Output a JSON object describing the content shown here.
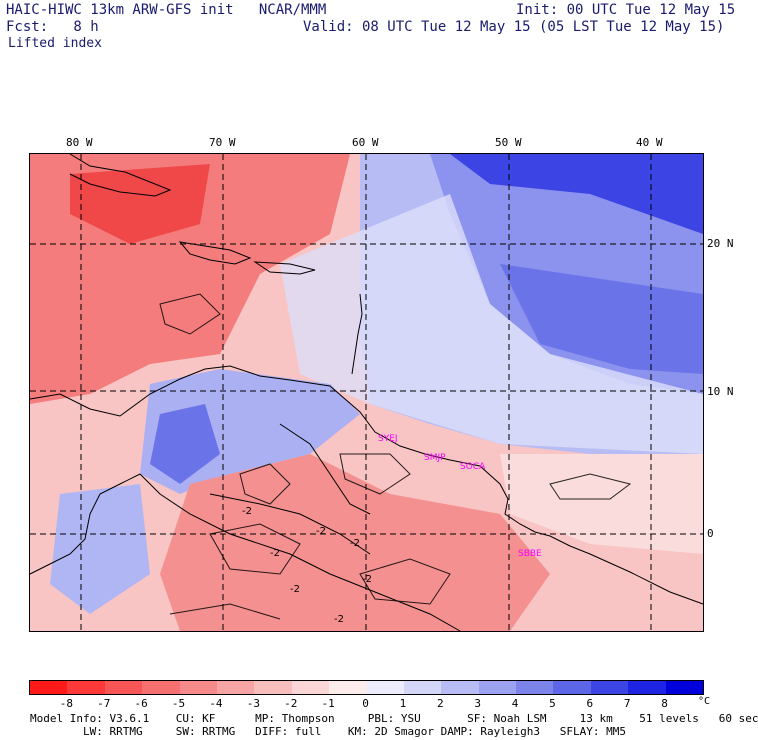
{
  "header": {
    "model_title": "HAIC-HIWC 13km ARW-GFS init   NCAR/MMM",
    "init": "Init: 00 UTC Tue 12 May 15",
    "fcst": "Fcst:   8 h",
    "valid": "Valid: 08 UTC Tue 12 May 15 (05 LST Tue 12 May 15)",
    "field": "Lifted index"
  },
  "map": {
    "lon_labels": [
      "80 W",
      "70 W",
      "60 W",
      "50 W",
      "40 W"
    ],
    "lat_labels": [
      "20 N",
      "10 N",
      "0"
    ],
    "stations": [
      "SYEJ",
      "SMJP",
      "SOCA",
      "SBBE"
    ],
    "contour_labels": [
      "-2",
      "-2",
      "-2",
      "-2",
      "-2",
      "-2",
      "-2"
    ]
  },
  "colorbar": {
    "labels": [
      "-8",
      "-7",
      "-6",
      "-5",
      "-4",
      "-3",
      "-2",
      "-1",
      "0",
      "1",
      "2",
      "3",
      "4",
      "5",
      "6",
      "7",
      "8"
    ],
    "unit": "°C",
    "colors": [
      "#ff1a1a",
      "#fc3838",
      "#f85656",
      "#f67070",
      "#f68a8a",
      "#f7a4a4",
      "#f8bebe",
      "#fad6d6",
      "#fcecec",
      "#ececfc",
      "#d4d6f8",
      "#b8bcf4",
      "#9ca2f0",
      "#7c84ea",
      "#5d66e6",
      "#3c44e4",
      "#1e24e2",
      "#0000dd"
    ]
  },
  "footer": {
    "line1": "Model Info: V3.6.1    CU: KF      MP: Thompson     PBL: YSU       SF: Noah LSM     13 km    51 levels   60 sec",
    "line2": "        LW: RRTMG     SW: RRTMG   DIFF: full    KM: 2D Smagor DAMP: Rayleigh3   SFLAY: MM5"
  }
}
